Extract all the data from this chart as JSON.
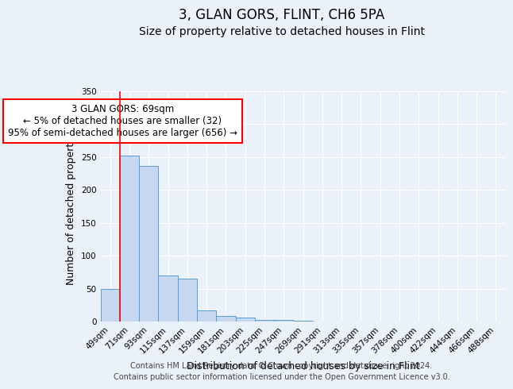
{
  "title": "3, GLAN GORS, FLINT, CH6 5PA",
  "subtitle": "Size of property relative to detached houses in Flint",
  "xlabel": "Distribution of detached houses by size in Flint",
  "ylabel": "Number of detached properties",
  "bar_labels": [
    "49sqm",
    "71sqm",
    "93sqm",
    "115sqm",
    "137sqm",
    "159sqm",
    "181sqm",
    "203sqm",
    "225sqm",
    "247sqm",
    "269sqm",
    "291sqm",
    "313sqm",
    "335sqm",
    "357sqm",
    "378sqm",
    "400sqm",
    "422sqm",
    "444sqm",
    "466sqm",
    "488sqm"
  ],
  "bar_values": [
    50,
    252,
    237,
    70,
    65,
    17,
    9,
    6,
    2,
    2,
    1,
    0,
    0,
    0,
    0,
    0,
    0,
    0,
    0,
    0,
    0
  ],
  "bar_color": "#c5d8f0",
  "bar_edge_color": "#5b9bd5",
  "red_line_x": 0.5,
  "ylim": [
    0,
    350
  ],
  "yticks": [
    0,
    50,
    100,
    150,
    200,
    250,
    300,
    350
  ],
  "annotation_box_text": "3 GLAN GORS: 69sqm\n← 5% of detached houses are smaller (32)\n95% of semi-detached houses are larger (656) →",
  "footer_line1": "Contains HM Land Registry data © Crown copyright and database right 2024.",
  "footer_line2": "Contains public sector information licensed under the Open Government Licence v3.0.",
  "bg_color": "#eaf1fb",
  "plot_bg_color": "#eaf1fb",
  "grid_color": "#ffffff",
  "title_fontsize": 12,
  "subtitle_fontsize": 10,
  "axis_label_fontsize": 9,
  "tick_fontsize": 7.5,
  "footer_fontsize": 7,
  "ann_fontsize": 8.5
}
